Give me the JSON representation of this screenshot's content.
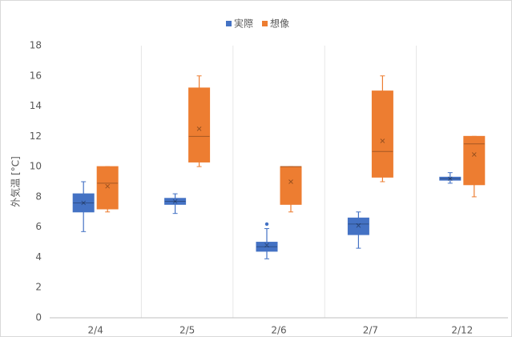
{
  "chart_data": {
    "type": "box",
    "ylabel": "外気温 [°C]",
    "categories": [
      "2/4",
      "2/5",
      "2/6",
      "2/7",
      "2/12"
    ],
    "ylim": [
      0,
      18
    ],
    "yticks": [
      0,
      2,
      4,
      6,
      8,
      10,
      12,
      14,
      16,
      18
    ],
    "grid": false,
    "legend": "top",
    "series": [
      {
        "name": "実際",
        "color": "#4472c4",
        "values": [
          {
            "min": 5.7,
            "q1": 7.0,
            "median": 7.6,
            "q3": 8.2,
            "max": 9.0,
            "mean": 7.6
          },
          {
            "min": 6.9,
            "q1": 7.5,
            "median": 7.7,
            "q3": 7.9,
            "max": 8.2,
            "mean": 7.7
          },
          {
            "min": 3.9,
            "q1": 4.4,
            "median": 4.7,
            "q3": 5.0,
            "max": 5.9,
            "mean": 4.8,
            "outliers": [
              6.2
            ]
          },
          {
            "min": 4.6,
            "q1": 5.5,
            "median": 6.2,
            "q3": 6.6,
            "max": 7.0,
            "mean": 6.1
          },
          {
            "min": 8.9,
            "q1": 9.1,
            "median": 9.2,
            "q3": 9.3,
            "max": 9.6,
            "mean": 9.2
          }
        ]
      },
      {
        "name": "想像",
        "color": "#ed7d31",
        "values": [
          {
            "min": 7.0,
            "q1": 7.2,
            "median": 8.9,
            "q3": 10.0,
            "max": 10.0,
            "mean": 8.7
          },
          {
            "min": 10.0,
            "q1": 10.3,
            "median": 12.0,
            "q3": 15.2,
            "max": 16.0,
            "mean": 12.5
          },
          {
            "min": 7.0,
            "q1": 7.5,
            "median": 10.0,
            "q3": 10.0,
            "max": 10.0,
            "mean": 9.0
          },
          {
            "min": 9.0,
            "q1": 9.3,
            "median": 11.0,
            "q3": 15.0,
            "max": 16.0,
            "mean": 11.7
          },
          {
            "min": 8.0,
            "q1": 8.8,
            "median": 11.5,
            "q3": 12.0,
            "max": 12.0,
            "mean": 10.8
          }
        ]
      }
    ]
  }
}
